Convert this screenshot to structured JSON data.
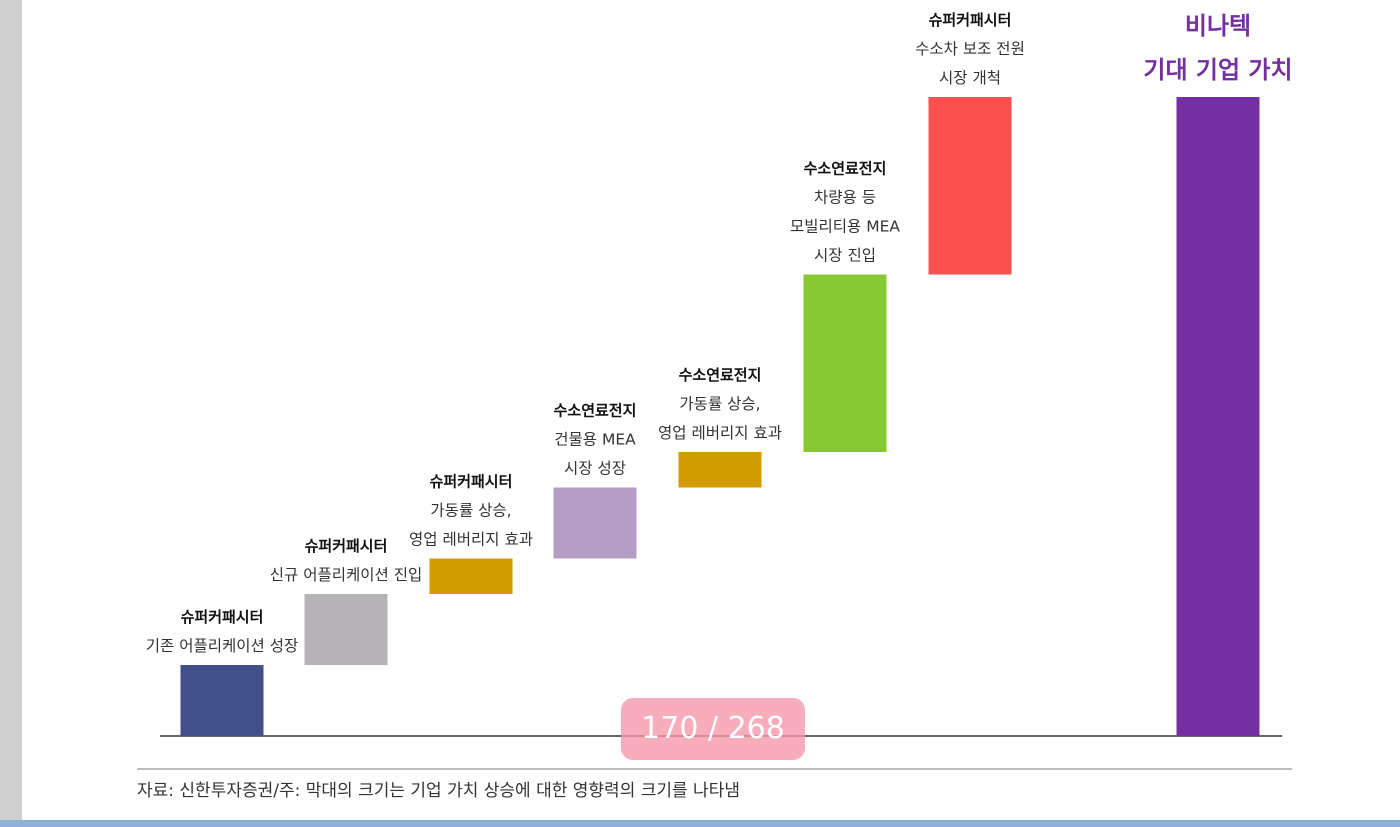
{
  "chart_data": {
    "type": "bar",
    "subtype": "waterfall",
    "total_label_lines": [
      "비나텍",
      "기대 기업 가치"
    ],
    "total_color": "#7330a0",
    "steps": [
      {
        "title": "슈퍼커패시터",
        "lines": [
          "기존 어플리케이션 성장"
        ],
        "value": 1,
        "color": "#414f8b"
      },
      {
        "title": "슈퍼커패시터",
        "lines": [
          "신규 어플리케이션 진입"
        ],
        "value": 1,
        "color": "#b5b3b6"
      },
      {
        "title": "슈퍼커패시터",
        "lines": [
          "가동률 상승,",
          "영업 레버리지 효과"
        ],
        "value": 0.5,
        "color": "#d09c00"
      },
      {
        "title": "수소연료전지",
        "lines": [
          "건물용 MEA",
          "시장 성장"
        ],
        "value": 1,
        "color": "#b49ec6"
      },
      {
        "title": "수소연료전지",
        "lines": [
          "가동률 상승,",
          "영업 레버리지 효과"
        ],
        "value": 0.5,
        "color": "#d09c00"
      },
      {
        "title": "수소연료전지",
        "lines": [
          "차량용 등",
          "모빌리티용 MEA",
          "시장 진입"
        ],
        "value": 2.5,
        "color": "#86c933"
      },
      {
        "title": "슈퍼커패시터",
        "lines": [
          "수소차 보조 전원",
          "시장 개척"
        ],
        "value": 2.5,
        "color": "#fb5050"
      }
    ],
    "total_value": 9
  },
  "source_note": "자료: 신한투자증권/주: 막대의 크기는 기업 가치 상승에 대한 영향력의 크기를 나타냄",
  "page_indicator": "170 / 268"
}
